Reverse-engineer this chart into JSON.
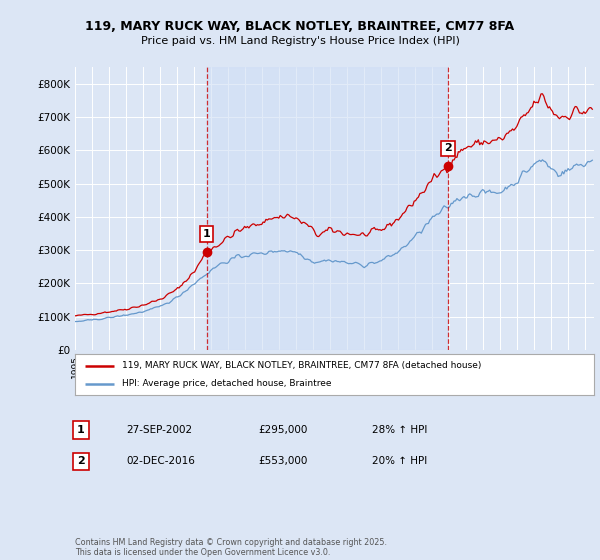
{
  "title_line1": "119, MARY RUCK WAY, BLACK NOTLEY, BRAINTREE, CM77 8FA",
  "title_line2": "Price paid vs. HM Land Registry's House Price Index (HPI)",
  "ylabel_ticks": [
    "£0",
    "£100K",
    "£200K",
    "£300K",
    "£400K",
    "£500K",
    "£600K",
    "£700K",
    "£800K"
  ],
  "ytick_values": [
    0,
    100000,
    200000,
    300000,
    400000,
    500000,
    600000,
    700000,
    800000
  ],
  "ylim": [
    0,
    850000
  ],
  "bg_color": "#dce6f5",
  "plot_bg_color": "#dce6f5",
  "shade_bg_color": "#d0dff5",
  "grid_color": "#ffffff",
  "line1_color": "#cc0000",
  "line2_color": "#6699cc",
  "vline_color": "#cc0000",
  "legend_line1": "119, MARY RUCK WAY, BLACK NOTLEY, BRAINTREE, CM77 8FA (detached house)",
  "legend_line2": "HPI: Average price, detached house, Braintree",
  "sale1_label": "1",
  "sale1_date": "27-SEP-2002",
  "sale1_price": "£295,000",
  "sale1_hpi": "28% ↑ HPI",
  "sale1_x": 2002.74,
  "sale1_y": 295000,
  "sale2_label": "2",
  "sale2_date": "02-DEC-2016",
  "sale2_price": "£553,000",
  "sale2_hpi": "20% ↑ HPI",
  "sale2_x": 2016.92,
  "sale2_y": 553000,
  "footer": "Contains HM Land Registry data © Crown copyright and database right 2025.\nThis data is licensed under the Open Government Licence v3.0.",
  "xmin": 1995.0,
  "xmax": 2025.5
}
